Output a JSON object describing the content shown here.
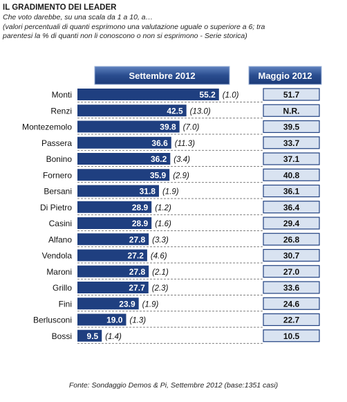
{
  "header": {
    "title": "IL GRADIMENTO DEI LEADER",
    "subtitle1": "Che voto darebbe, su una scala da 1 a 10, a…",
    "subtitle2": "(valori percentuali di quanti esprimono una valutazione uguale o superiore a 6; tra",
    "subtitle3": "parentesi la % di quanti non li conoscono o non si esprimono - Serie storica)"
  },
  "footer": {
    "source": "Fonte: Sondaggio Demos & Pi, Settembre 2012 (base:1351 casi)"
  },
  "colors": {
    "bar": "#1f3f80",
    "header_bg": "#1f3f80",
    "box_bg": "#d9e3f1",
    "box_border": "#1f3f80"
  },
  "chart_data": {
    "type": "bar",
    "orientation": "horizontal",
    "series_headers": [
      "Settembre 2012",
      "Maggio 2012"
    ],
    "categories": [
      "Monti",
      "Renzi",
      "Montezemolo",
      "Passera",
      "Bonino",
      "Fornero",
      "Bersani",
      "Di Pietro",
      "Casini",
      "Alfano",
      "Vendola",
      "Maroni",
      "Grillo",
      "Fini",
      "Berlusconi",
      "Bossi"
    ],
    "values": [
      55.2,
      42.5,
      39.8,
      36.6,
      36.2,
      35.9,
      31.8,
      28.9,
      28.9,
      27.8,
      27.2,
      27.8,
      27.7,
      23.9,
      19.0,
      9.5
    ],
    "value_labels": [
      "55.2",
      "42.5",
      "39.8",
      "36.6",
      "36.2",
      "35.9",
      "31.8",
      "28.9",
      "28.9",
      "27.8",
      "27.2",
      "27.8",
      "27.7",
      "23.9",
      "19.0",
      "9.5"
    ],
    "unknown_labels": [
      "(1.0)",
      "(13.0)",
      "(7.0)",
      "(11.3)",
      "(3.4)",
      "(2.9)",
      "(1.9)",
      "(1.2)",
      "(1.6)",
      "(3.3)",
      "(4.6)",
      "(2.1)",
      "(2.3)",
      "(1.9)",
      "(1.3)",
      "(1.4)"
    ],
    "previous_labels": [
      "51.7",
      "N.R.",
      "39.5",
      "33.7",
      "37.1",
      "40.8",
      "36.1",
      "36.4",
      "29.4",
      "26.8",
      "30.7",
      "27.0",
      "33.6",
      "24.6",
      "22.7",
      "10.5"
    ],
    "xlim": [
      0,
      60
    ],
    "grid": false
  }
}
